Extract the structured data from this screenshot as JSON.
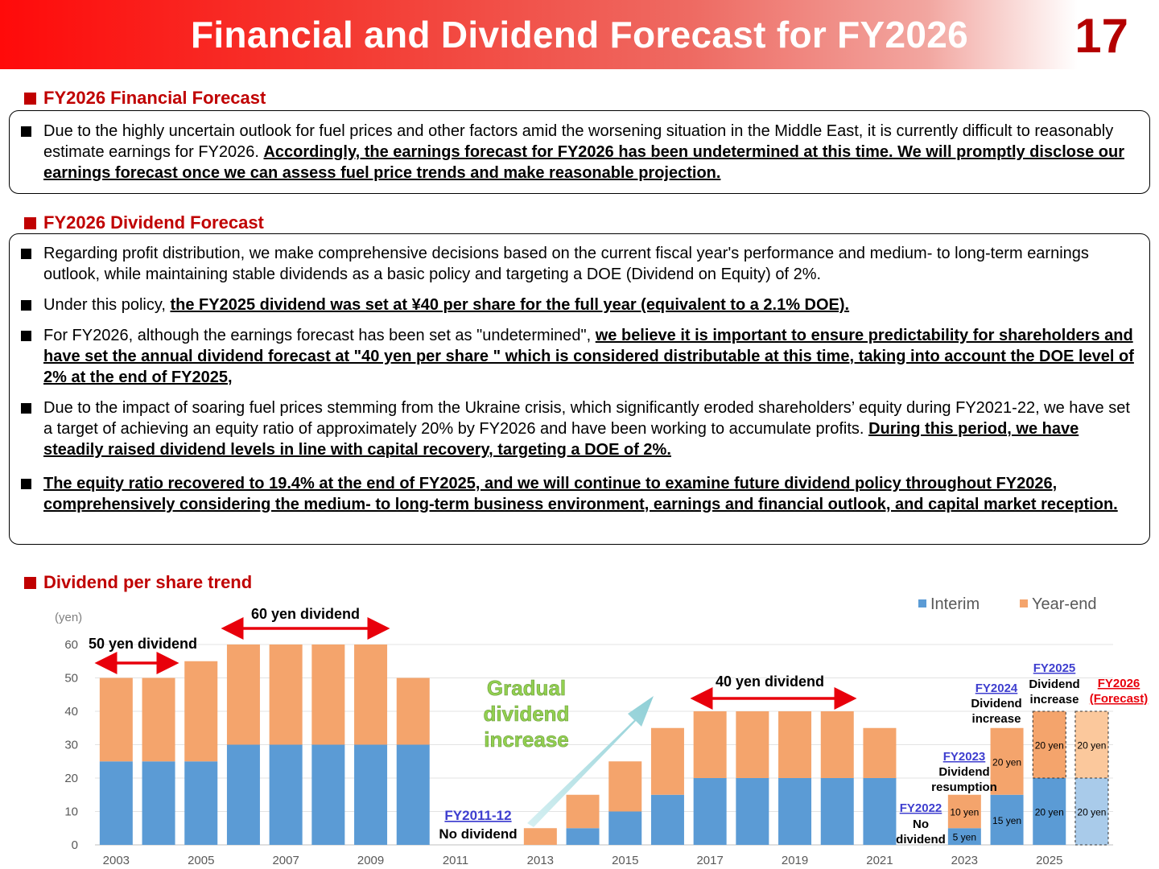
{
  "header": {
    "title": "Financial and Dividend Forecast for FY2026",
    "page_number": "17"
  },
  "sections": {
    "financial": "FY2026 Financial Forecast",
    "dividend": "FY2026 Dividend Forecast",
    "trend": "Dividend per share trend"
  },
  "financial_box": {
    "p1_plain": "Due to the highly uncertain outlook for fuel prices and other factors amid the worsening situation in the Middle East, it is currently difficult to reasonably estimate earnings for FY2026.  ",
    "p1_bold": "Accordingly, the earnings forecast for FY2026 has been undetermined at this time. We will promptly disclose our earnings forecast once we can assess fuel price trends and make reasonable projection."
  },
  "dividend_box": {
    "p1": "Regarding profit distribution, we make comprehensive decisions based on the current fiscal year's performance and medium- to long-term earnings outlook, while maintaining stable dividends as a basic policy and targeting a DOE (Dividend on Equity) of 2%.",
    "p2_plain": "Under this policy, ",
    "p2_bold": "the FY2025 dividend was set at ¥40 per share for the full year (equivalent to a 2.1% DOE).",
    "p3_plain": "For FY2026, although the earnings forecast has been set as \"undetermined\", ",
    "p3_bold": "we believe it is important to ensure predictability for shareholders and have set the annual dividend forecast at \"40 yen per share \" which is considered distributable at this time, taking into account the DOE level of 2% at the end of FY2025,",
    "p4_plain": "Due to the impact of soaring fuel prices stemming from the Ukraine crisis, which significantly eroded shareholders’ equity during FY2021-22, we have set a target of achieving an equity ratio of approximately 20% by FY2026 and have been working to accumulate profits. ",
    "p4_bold": "During this period, we have steadily raised dividend levels in line with capital recovery, targeting a DOE of 2%.",
    "p5_bold": "The equity ratio recovered to 19.4% at the end of FY2025, and we will continue to examine future dividend policy throughout FY2026, comprehensively considering the medium- to long-term business environment, earnings and financial outlook, and capital market reception."
  },
  "chart_data": {
    "type": "bar",
    "stacked": true,
    "ylabel": "(yen)",
    "ylim": [
      0,
      60
    ],
    "yticks": [
      "0",
      "10",
      "20",
      "30",
      "40",
      "50",
      "60"
    ],
    "grid": true,
    "legend_position": "top-right",
    "categories": [
      "2003",
      "2004",
      "2005",
      "2006",
      "2007",
      "2008",
      "2009",
      "2010",
      "2011",
      "2012",
      "2013",
      "2014",
      "2015",
      "2016",
      "2017",
      "2018",
      "2019",
      "2020",
      "2021",
      "2022",
      "2023",
      "2024",
      "2025",
      "2026"
    ],
    "xtick_labels": [
      "2003",
      "",
      "2005",
      "",
      "2007",
      "",
      "2009",
      "",
      "2011",
      "",
      "2013",
      "",
      "2015",
      "",
      "2017",
      "",
      "2019",
      "",
      "2021",
      "",
      "2023",
      "",
      "2025",
      ""
    ],
    "series": [
      {
        "name": "Interim",
        "color": "#5b9bd5",
        "values": [
          25,
          25,
          25,
          30,
          30,
          30,
          30,
          30,
          0,
          0,
          0,
          5,
          10,
          15,
          20,
          20,
          20,
          20,
          20,
          0,
          5,
          15,
          20,
          20
        ]
      },
      {
        "name": "Year-end",
        "color": "#f4a46c",
        "values": [
          25,
          25,
          30,
          30,
          30,
          30,
          30,
          20,
          0,
          0,
          5,
          10,
          15,
          20,
          20,
          20,
          20,
          20,
          15,
          0,
          10,
          20,
          20,
          20
        ]
      }
    ],
    "forecast_category": "2026",
    "bar_labels": [
      {
        "text": "5 yen"
      },
      {
        "text": "10 yen"
      },
      {
        "text": "15 yen"
      },
      {
        "text": "20 yen"
      },
      {
        "text": "20 yen"
      },
      {
        "text": "20 yen"
      },
      {
        "text": "20 yen"
      },
      {
        "text": "20 yen"
      }
    ],
    "annotations": {
      "div50": "50 yen dividend",
      "div60": "60 yen dividend",
      "div40": "40 yen dividend",
      "gradual": [
        "Gradual",
        "dividend",
        "increase"
      ],
      "fy2011_year": "FY2011-12",
      "fy2011_text": "No dividend",
      "fy2022_year": "FY2022",
      "fy2022_text": [
        "No",
        "dividend"
      ],
      "fy2023_year": "FY2023",
      "fy2023_text": [
        "Dividend",
        "resumption"
      ],
      "fy2024_year": "FY2024",
      "fy2024_text": [
        "Dividend",
        "increase"
      ],
      "fy2025_year": "FY2025",
      "fy2025_text": [
        "Dividend",
        "increase"
      ],
      "fy2026_year": "FY2026",
      "fy2026_text": "(Forecast)"
    }
  }
}
